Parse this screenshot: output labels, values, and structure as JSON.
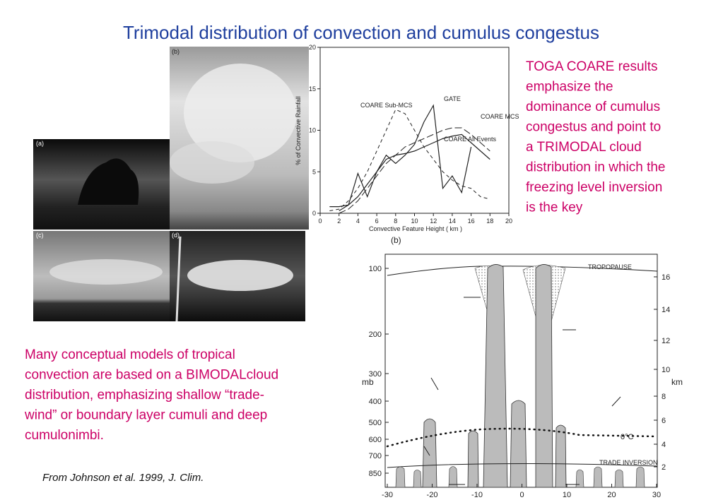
{
  "title": "Trimodal distribution of convection and cumulus congestus",
  "photos": [
    "(a)",
    "(b)",
    "(c)",
    "(d)"
  ],
  "chart_data": {
    "type": "line",
    "x_label": "Convective Feature Height  ( km )",
    "y_label": "% of Convective Rainfall",
    "x": [
      1,
      2,
      3,
      4,
      5,
      6,
      7,
      8,
      9,
      10,
      11,
      12,
      13,
      14,
      15,
      16,
      17,
      18
    ],
    "series": [
      {
        "name": "COARE Sub-MCS",
        "color": "#222222",
        "style": "dashed",
        "values": [
          0.3,
          0.5,
          1.5,
          3,
          5,
          7.5,
          10,
          12.5,
          12,
          10,
          8,
          6.5,
          5,
          4,
          3.3,
          3,
          2,
          1.7
        ]
      },
      {
        "name": "GATE",
        "color": "#222222",
        "style": "solid",
        "values": [
          0.8,
          0.8,
          1,
          4.8,
          2,
          5,
          7,
          6,
          7,
          8.3,
          11,
          13,
          3,
          4.5,
          2.5,
          8,
          null,
          null
        ]
      },
      {
        "name": "COARE MCS",
        "color": "#222222",
        "style": "longdash",
        "values": [
          null,
          0,
          0.5,
          1.5,
          3,
          4.5,
          6,
          7,
          8,
          8.5,
          9,
          9.5,
          10,
          10.3,
          10.3,
          9.5,
          8.5,
          7.5
        ]
      },
      {
        "name": "COARE All Events",
        "color": "#222222",
        "style": "solid",
        "values": [
          null,
          0.3,
          1,
          2,
          3.5,
          5,
          6.5,
          7,
          7.2,
          7.5,
          8,
          8.5,
          9,
          9.3,
          9.5,
          8.5,
          7.5,
          6.5
        ]
      }
    ],
    "xlim": [
      0,
      20
    ],
    "xticks": [
      0,
      2,
      4,
      6,
      8,
      10,
      12,
      14,
      16,
      18,
      20
    ],
    "ylim": [
      0,
      20
    ],
    "yticks": [
      0,
      5,
      10,
      15,
      20
    ]
  },
  "diagram": {
    "label": "(b)",
    "pressure_label": "mb",
    "height_label": "km",
    "pressure_ticks": [
      100,
      200,
      300,
      400,
      500,
      600,
      700,
      850
    ],
    "height_ticks": [
      16,
      14,
      12,
      10,
      8,
      6,
      4,
      2
    ],
    "x_ticks": [
      -30,
      -20,
      -10,
      0,
      10,
      20,
      30
    ],
    "tropopause": "TROPOPAUSE",
    "freezing": "0°C",
    "inversion": "TRADE INVERSION"
  },
  "right_text": {
    "lines": [
      "TOGA COARE results",
      "emphasize the",
      "dominance of cumulus",
      "congestus and point to",
      "a TRIMODAL cloud",
      "distribution in which the",
      "freezing level inversion",
      "is the key"
    ]
  },
  "left_text": {
    "lines": [
      "Many conceptual models of tropical",
      "convection are based on a BIMODALcloud",
      "distribution, emphasizing shallow “trade-",
      "wind” or boundary layer cumuli and deep",
      "cumulonimbi."
    ]
  },
  "citation": "From Johnson et al. 1999, J. Clim."
}
